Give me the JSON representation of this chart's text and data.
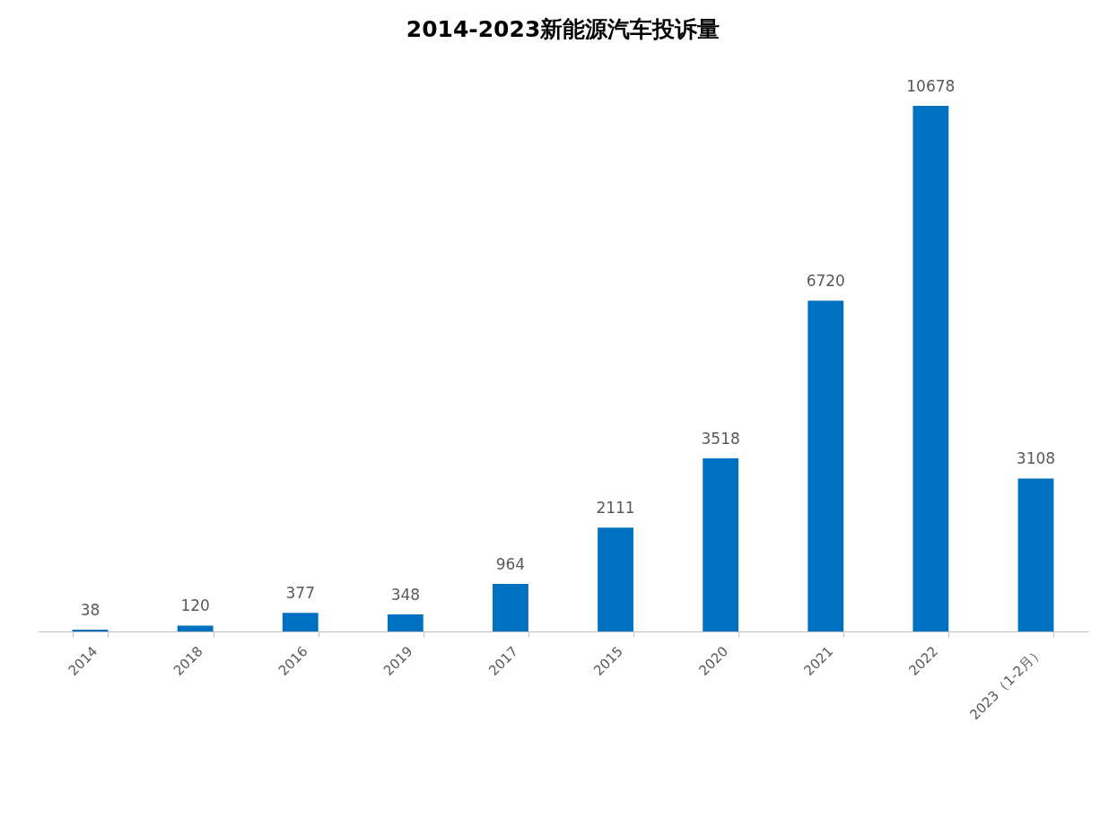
{
  "chart_data": {
    "type": "bar",
    "title": "2014-2023新能源汽车投诉量",
    "categories": [
      "2014",
      "2018",
      "2016",
      "2019",
      "2017",
      "2015",
      "2020",
      "2021",
      "2022",
      "2023（1-2月）"
    ],
    "values": [
      38,
      120,
      377,
      348,
      964,
      2111,
      3518,
      6720,
      10678,
      3108
    ],
    "color": "#0070c0",
    "data_labels": true
  }
}
